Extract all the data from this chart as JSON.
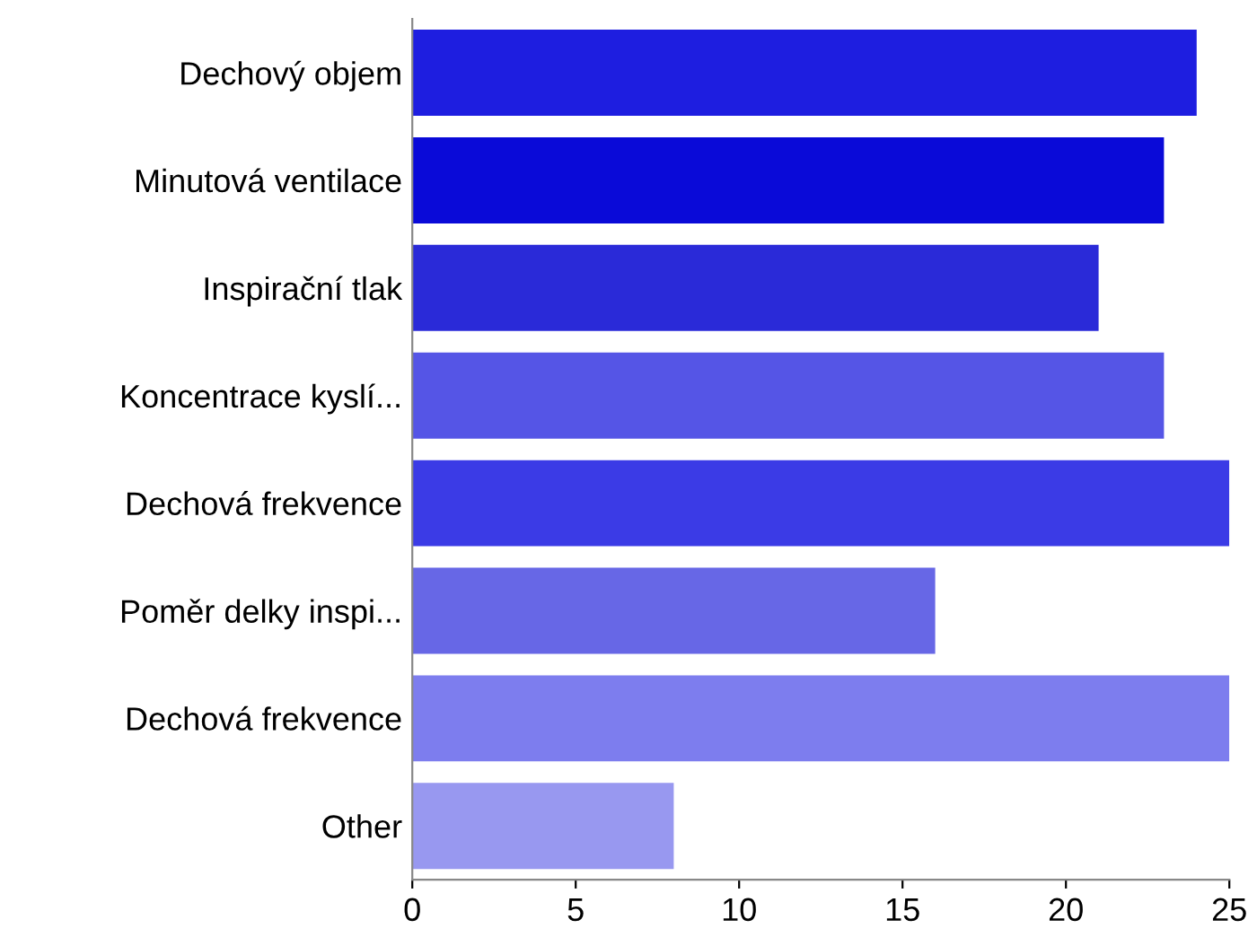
{
  "chart_data": {
    "type": "bar",
    "orientation": "horizontal",
    "categories": [
      "Dechový objem",
      "Minutová ventilace",
      "Inspirační tlak",
      "Koncentrace kyslí...",
      "Dechová frekvence",
      "Poměr delky inspi...",
      "Dechová frekvence",
      "Other"
    ],
    "values": [
      24,
      23,
      21,
      23,
      25,
      16,
      25,
      8
    ],
    "colors": [
      "#1e1ee0",
      "#0a0ad8",
      "#2a2ad8",
      "#5555e6",
      "#3b3be6",
      "#6767e6",
      "#7d7dee",
      "#9898f0"
    ],
    "xlim": [
      0,
      25
    ],
    "xticks": [
      0,
      5,
      10,
      15,
      20,
      25
    ],
    "grid": false,
    "legend": false
  }
}
